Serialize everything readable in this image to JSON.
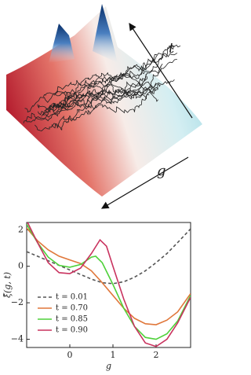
{
  "chart_data": [
    {
      "type": "surface",
      "x_label": "g",
      "y_label": "t"
    },
    {
      "type": "line",
      "x_label": "g",
      "y_label": "ξ̂(g, t)",
      "xlim": [
        -1,
        2.8
      ],
      "ylim": [
        -4.45,
        2.4
      ],
      "xticks": [
        0,
        1,
        2
      ],
      "yticks": [
        {
          "value": -4,
          "label": "−4"
        },
        {
          "value": -2,
          "label": "−2"
        },
        0,
        2
      ],
      "legend": "lower left",
      "series": [
        {
          "name": "t = 0.01",
          "color": "#555555",
          "dash": true,
          "x": [
            -1,
            -0.75,
            -0.5,
            -0.25,
            0,
            0.25,
            0.5,
            0.75,
            1,
            1.25,
            1.5,
            1.75,
            2,
            2.25,
            2.5,
            2.8
          ],
          "values": [
            0.8,
            0.55,
            0.3,
            0.05,
            -0.2,
            -0.45,
            -0.7,
            -0.9,
            -0.95,
            -0.85,
            -0.6,
            -0.25,
            0.2,
            0.7,
            1.3,
            2.05
          ]
        },
        {
          "name": "t = 0.70",
          "color": "#e0773a",
          "x": [
            -1,
            -0.75,
            -0.5,
            -0.25,
            0,
            0.25,
            0.5,
            0.75,
            1,
            1.25,
            1.5,
            1.75,
            2,
            2.25,
            2.5,
            2.8
          ],
          "values": [
            2.1,
            1.4,
            0.9,
            0.55,
            0.35,
            0.15,
            -0.25,
            -0.9,
            -1.6,
            -2.3,
            -2.85,
            -3.15,
            -3.2,
            -2.95,
            -2.5,
            -1.5
          ]
        },
        {
          "name": "t = 0.85",
          "color": "#4fd13a",
          "x": [
            -1,
            -0.75,
            -0.5,
            -0.25,
            0,
            0.25,
            0.5,
            0.6,
            0.75,
            1,
            1.25,
            1.5,
            1.75,
            2,
            2.25,
            2.5,
            2.8
          ],
          "values": [
            2.3,
            1.3,
            0.5,
            0.05,
            -0.05,
            0.1,
            0.5,
            0.55,
            0.2,
            -1.0,
            -2.3,
            -3.3,
            -3.9,
            -4.0,
            -3.7,
            -3.0,
            -1.6
          ]
        },
        {
          "name": "t = 0.90",
          "color": "#c9335f",
          "x": [
            -1,
            -0.75,
            -0.5,
            -0.25,
            0,
            0.25,
            0.5,
            0.7,
            0.85,
            1,
            1.25,
            1.5,
            1.75,
            2,
            2.25,
            2.5,
            2.8
          ],
          "values": [
            2.5,
            1.3,
            0.2,
            -0.35,
            -0.4,
            -0.1,
            0.7,
            1.45,
            1.1,
            0.0,
            -1.8,
            -3.3,
            -4.2,
            -4.4,
            -4.0,
            -3.1,
            -1.7
          ]
        }
      ]
    }
  ]
}
